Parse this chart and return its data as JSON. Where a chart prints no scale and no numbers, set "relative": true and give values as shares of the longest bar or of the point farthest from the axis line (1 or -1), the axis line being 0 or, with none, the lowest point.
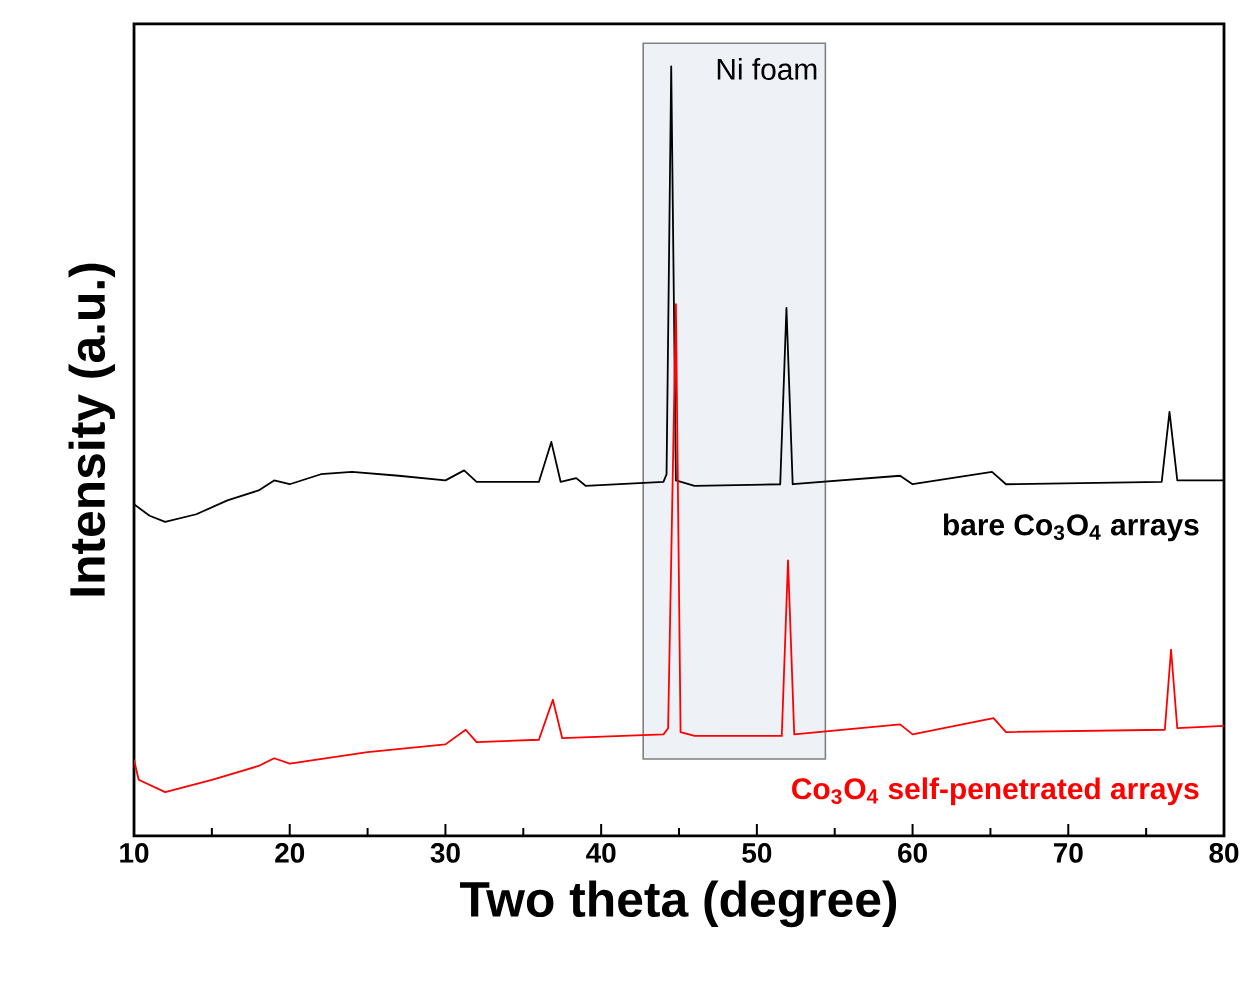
{
  "chart_data": {
    "type": "line",
    "relative": true,
    "xlabel": "Two theta (degree)",
    "ylabel": "Intensity (a.u.)",
    "xlim": [
      10,
      80
    ],
    "xticks": [
      10,
      20,
      30,
      40,
      50,
      60,
      70,
      80
    ],
    "grid": false,
    "marker": "none",
    "line_style": "solid",
    "bands": [
      {
        "axis": "x",
        "from": 42.7,
        "to": 54.4,
        "label": "Ni foam",
        "color": "#eef2f7"
      }
    ],
    "series": [
      {
        "name": "bare Co$_{3}$O$_{4}$ arrays",
        "color": "#000000",
        "x": [
          10,
          11,
          12,
          14,
          16,
          18,
          19,
          20,
          22,
          24,
          27,
          30,
          31.2,
          32,
          36,
          36.8,
          37.4,
          38.4,
          39,
          44,
          44.2,
          44.5,
          44.8,
          46,
          51.5,
          51.9,
          52.3,
          59.2,
          60,
          65.1,
          66,
          76,
          76.5,
          77,
          80
        ],
        "values": [
          0.431,
          0.416,
          0.408,
          0.418,
          0.436,
          0.449,
          0.462,
          0.457,
          0.47,
          0.473,
          0.468,
          0.462,
          0.475,
          0.46,
          0.46,
          0.512,
          0.46,
          0.465,
          0.455,
          0.46,
          0.47,
          1.0,
          0.462,
          0.455,
          0.457,
          0.686,
          0.457,
          0.468,
          0.457,
          0.473,
          0.457,
          0.46,
          0.551,
          0.462,
          0.462
        ]
      },
      {
        "name": "Co$_{3}$O$_{4}$ self-penetrated  arrays",
        "color": "#ff0000",
        "x": [
          10,
          10.3,
          12,
          15,
          18,
          19,
          20,
          25,
          30,
          31.3,
          32,
          36,
          36.9,
          37.5,
          44,
          44.3,
          44.8,
          45.1,
          46,
          51.6,
          52,
          52.4,
          59.2,
          60,
          65.2,
          66,
          76.2,
          76.6,
          77,
          80
        ],
        "values": [
          0.099,
          0.073,
          0.057,
          0.073,
          0.091,
          0.101,
          0.094,
          0.109,
          0.119,
          0.138,
          0.122,
          0.125,
          0.177,
          0.127,
          0.132,
          0.14,
          0.691,
          0.135,
          0.13,
          0.13,
          0.358,
          0.132,
          0.145,
          0.132,
          0.153,
          0.135,
          0.138,
          0.242,
          0.14,
          0.143
        ]
      }
    ]
  }
}
